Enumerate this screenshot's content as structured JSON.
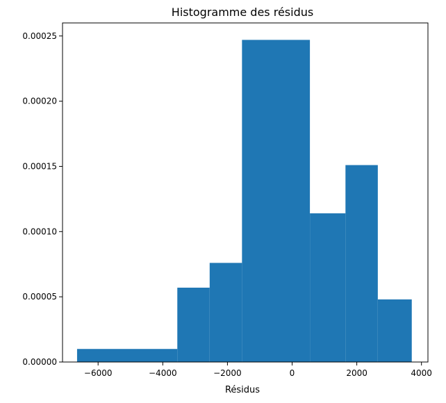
{
  "chart_data": {
    "type": "bar",
    "title": "Histogramme des résidus",
    "xlabel": "Résidus",
    "ylabel": "",
    "bar_color": "#1f77b4",
    "grid": false,
    "legend": "none",
    "xlim": [
      -7100,
      4200
    ],
    "ylim": [
      0,
      0.00026
    ],
    "bins": [
      {
        "x0": -6650,
        "x1": -3550,
        "value": 1e-05
      },
      {
        "x0": -3550,
        "x1": -2550,
        "value": 5.7e-05
      },
      {
        "x0": -2550,
        "x1": -1550,
        "value": 7.6e-05
      },
      {
        "x0": -1550,
        "x1": 550,
        "value": 0.000247
      },
      {
        "x0": 550,
        "x1": 1650,
        "value": 0.000114
      },
      {
        "x0": 1650,
        "x1": 2650,
        "value": 0.000151
      },
      {
        "x0": 2650,
        "x1": 3700,
        "value": 4.8e-05
      }
    ],
    "x_ticks": [
      {
        "value": -6000,
        "label": "−6000"
      },
      {
        "value": -4000,
        "label": "−4000"
      },
      {
        "value": -2000,
        "label": "−2000"
      },
      {
        "value": 0,
        "label": "0"
      },
      {
        "value": 2000,
        "label": "2000"
      },
      {
        "value": 4000,
        "label": "4000"
      }
    ],
    "y_ticks": [
      {
        "value": 0,
        "label": "0.00000"
      },
      {
        "value": 5e-05,
        "label": "0.00005"
      },
      {
        "value": 0.0001,
        "label": "0.00010"
      },
      {
        "value": 0.00015,
        "label": "0.00015"
      },
      {
        "value": 0.0002,
        "label": "0.00020"
      },
      {
        "value": 0.00025,
        "label": "0.00025"
      }
    ]
  }
}
